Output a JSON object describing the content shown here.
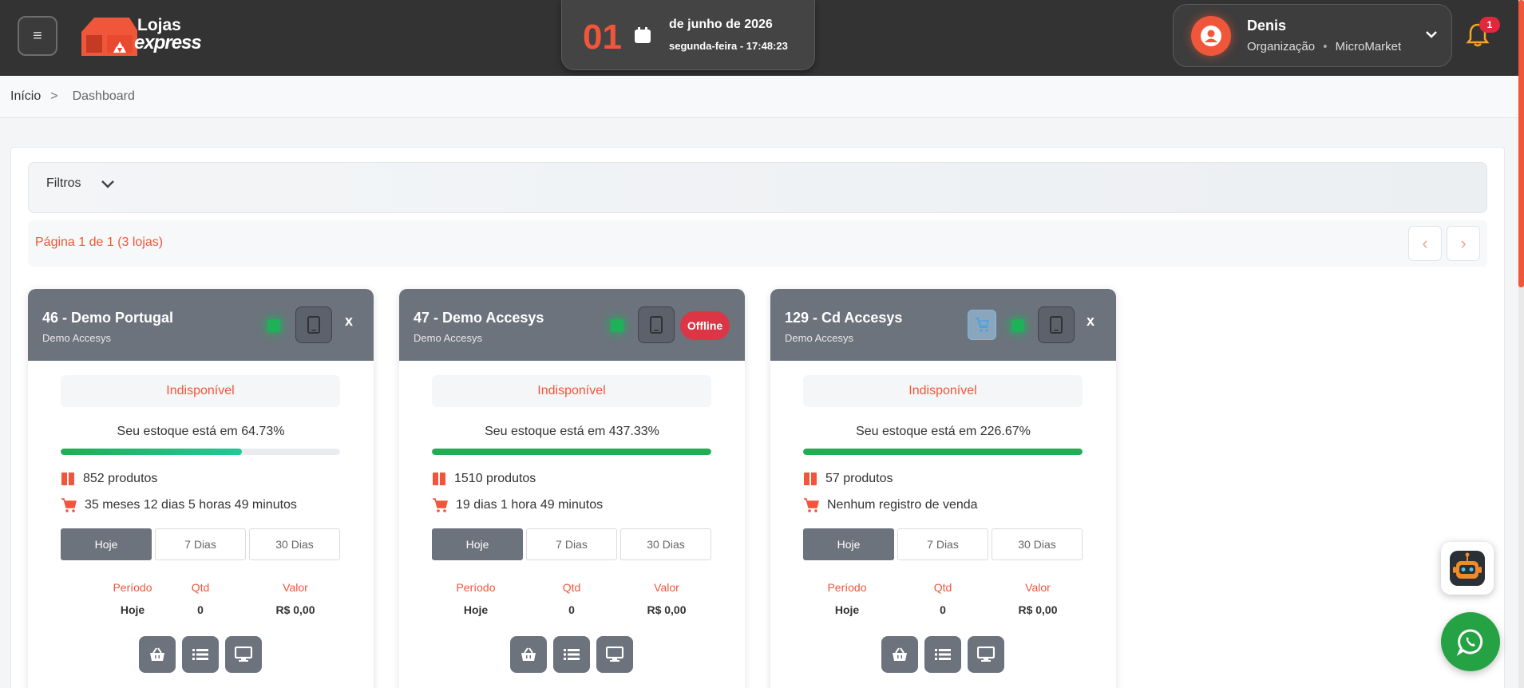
{
  "header": {
    "logo_line1": "Lojas",
    "logo_line2": "express",
    "date_day": "01",
    "date_month": "de junho de 2026",
    "date_time": "segunda-feira - 17:48:23",
    "user_name": "Denis",
    "user_org_label": "Organização",
    "user_org_name": "MicroMarket",
    "notification_count": "1"
  },
  "breadcrumb": {
    "home": "Início",
    "separator": ">",
    "current": "Dashboard"
  },
  "filters": {
    "label": "Filtros"
  },
  "pager": {
    "text": "Página 1 de 1 (3 lojas)",
    "prev": "‹",
    "next": "›"
  },
  "colors": {
    "accent": "#f0563a",
    "header_bg": "#333333",
    "card_head": "#6c737d",
    "success": "#1fb15a",
    "danger": "#dc3545"
  },
  "cards": [
    {
      "title": "46 - Demo Portugal",
      "subtitle": "Demo Accesys",
      "close": "x",
      "status": "Indisponível",
      "stock_text": "Seu estoque está em 64.73%",
      "stock_percent": 64.73,
      "products": "852 produtos",
      "last_sale": "35 meses 12 dias 5 horas 49 minutos",
      "tabs": [
        "Hoje",
        "7 Dias",
        "30 Dias"
      ],
      "table_headers": [
        "Período",
        "Qtd",
        "Valor"
      ],
      "table_row": [
        "Hoje",
        "0",
        "R$ 0,00"
      ]
    },
    {
      "title": "47 - Demo Accesys",
      "subtitle": "Demo Accesys",
      "badge": "Offline",
      "status": "Indisponível",
      "stock_text": "Seu estoque está em 437.33%",
      "stock_percent": 100,
      "products": "1510 produtos",
      "last_sale": "19 dias 1 hora 49 minutos",
      "tabs": [
        "Hoje",
        "7 Dias",
        "30 Dias"
      ],
      "table_headers": [
        "Período",
        "Qtd",
        "Valor"
      ],
      "table_row": [
        "Hoje",
        "0",
        "R$ 0,00"
      ]
    },
    {
      "title": "129 - Cd Accesys",
      "subtitle": "Demo Accesys",
      "close": "x",
      "status": "Indisponível",
      "stock_text": "Seu estoque está em 226.67%",
      "stock_percent": 100,
      "products": "57 produtos",
      "last_sale": "Nenhum registro de venda",
      "tabs": [
        "Hoje",
        "7 Dias",
        "30 Dias"
      ],
      "table_headers": [
        "Período",
        "Qtd",
        "Valor"
      ],
      "table_row": [
        "Hoje",
        "0",
        "R$ 0,00"
      ]
    }
  ]
}
